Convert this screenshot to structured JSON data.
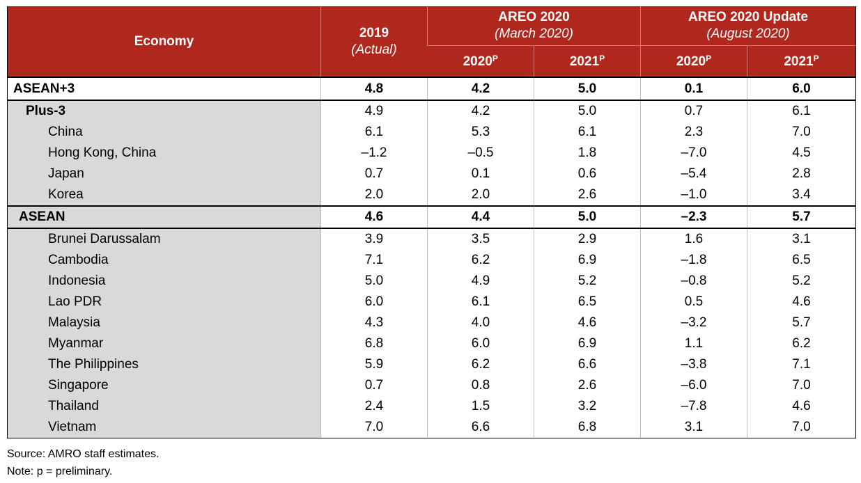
{
  "header": {
    "economy": "Economy",
    "actual_year": "2019",
    "actual_sub": "(Actual)",
    "group1_title": "AREO 2020",
    "group1_sub": "(March 2020)",
    "group2_title": "AREO 2020 Update",
    "group2_sub": "(August 2020)",
    "col_2020": "2020",
    "col_2021": "2021",
    "sup": "P"
  },
  "rows": [
    {
      "name": "ASEAN+3",
      "values": [
        "4.8",
        "4.2",
        "5.0",
        "0.1",
        "6.0"
      ]
    },
    {
      "name": "Plus-3",
      "values": [
        "4.9",
        "4.2",
        "5.0",
        "0.7",
        "6.1"
      ]
    },
    {
      "name": "China",
      "values": [
        "6.1",
        "5.3",
        "6.1",
        "2.3",
        "7.0"
      ]
    },
    {
      "name": "Hong Kong, China",
      "values": [
        "–1.2",
        "–0.5",
        "1.8",
        "–7.0",
        "4.5"
      ]
    },
    {
      "name": "Japan",
      "values": [
        "0.7",
        "0.1",
        "0.6",
        "–5.4",
        "2.8"
      ]
    },
    {
      "name": "Korea",
      "values": [
        "2.0",
        "2.0",
        "2.6",
        "–1.0",
        "3.4"
      ]
    },
    {
      "name": "ASEAN",
      "values": [
        "4.6",
        "4.4",
        "5.0",
        "–2.3",
        "5.7"
      ]
    },
    {
      "name": "Brunei Darussalam",
      "values": [
        "3.9",
        "3.5",
        "2.9",
        "1.6",
        "3.1"
      ]
    },
    {
      "name": "Cambodia",
      "values": [
        "7.1",
        "6.2",
        "6.9",
        "–1.8",
        "6.5"
      ]
    },
    {
      "name": "Indonesia",
      "values": [
        "5.0",
        "4.9",
        "5.2",
        "–0.8",
        "5.2"
      ]
    },
    {
      "name": "Lao PDR",
      "values": [
        "6.0",
        "6.1",
        "6.5",
        "0.5",
        "4.6"
      ]
    },
    {
      "name": "Malaysia",
      "values": [
        "4.3",
        "4.0",
        "4.6",
        "–3.2",
        "5.7"
      ]
    },
    {
      "name": "Myanmar",
      "values": [
        "6.8",
        "6.0",
        "6.9",
        "1.1",
        "6.2"
      ]
    },
    {
      "name": "The Philippines",
      "values": [
        "5.9",
        "6.2",
        "6.6",
        "–3.8",
        "7.1"
      ]
    },
    {
      "name": "Singapore",
      "values": [
        "0.7",
        "0.8",
        "2.6",
        "–6.0",
        "7.0"
      ]
    },
    {
      "name": "Thailand",
      "values": [
        "2.4",
        "1.5",
        "3.2",
        "–7.8",
        "4.6"
      ]
    },
    {
      "name": "Vietnam",
      "values": [
        "7.0",
        "6.6",
        "6.8",
        "3.1",
        "7.0"
      ]
    }
  ],
  "notes": {
    "source": "Source: AMRO staff estimates.",
    "note": "Note: p = preliminary."
  }
}
